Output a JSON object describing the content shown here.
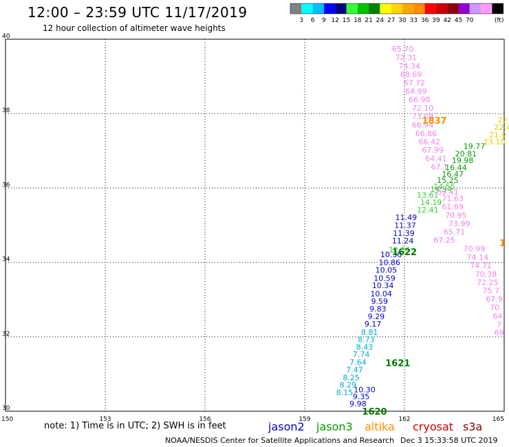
{
  "header": {
    "title": "12:00 – 23:59 UTC 11/17/2019",
    "subtitle": "12 hour collection of altimeter wave heights"
  },
  "colorbar": {
    "colors": [
      "#808080",
      "#00ffff",
      "#00bfff",
      "#0000ff",
      "#000080",
      "#33ff33",
      "#00c000",
      "#008000",
      "#ffff00",
      "#ffd700",
      "#ffa500",
      "#ff8c00",
      "#ff0000",
      "#cc0000",
      "#8b0000",
      "#9400d3",
      "#cc99ff",
      "#ff99ff",
      "#000000"
    ],
    "labels": [
      "3",
      "6",
      "9",
      "12",
      "15",
      "18",
      "21",
      "24",
      "27",
      "30",
      "33",
      "36",
      "39",
      "42",
      "45",
      "70",
      "(ft)"
    ]
  },
  "footer": {
    "note": "note: 1) Time is in UTC; 2) SWH is in feet",
    "credit": "NOAA/NESDIS Center for Satellite Applications and Research",
    "date": "Dec  3 15:33:58 UTC 2019"
  },
  "satellites": [
    {
      "name": "jason2",
      "color": "#0000cc"
    },
    {
      "name": "jason3",
      "color": "#009900"
    },
    {
      "name": "altika",
      "color": "#ff8c00"
    },
    {
      "name": "cryosat",
      "color": "#cc0000"
    },
    {
      "name": "s3a",
      "color": "#8b0000"
    }
  ],
  "chart_data": {
    "type": "scatter",
    "title": "12:00 – 23:59 UTC 11/17/2019",
    "subtitle": "12 hour collection of altimeter wave heights",
    "xlim": [
      150,
      165
    ],
    "ylim": [
      30,
      40
    ],
    "xticks": [
      "150",
      "153",
      "156",
      "159",
      "162",
      "165"
    ],
    "yticks": [
      "30",
      "32",
      "34",
      "36",
      "38",
      "40"
    ],
    "grid": true,
    "time_labels": [
      {
        "text": "1837",
        "lon": 162.9,
        "lat": 37.82,
        "color": "#ff8c00"
      },
      {
        "text": "1622",
        "lon": 162.0,
        "lat": 34.29,
        "color": "#007700"
      },
      {
        "text": "1621",
        "lon": 161.8,
        "lat": 31.3,
        "color": "#007700"
      },
      {
        "text": "1620",
        "lon": 161.1,
        "lat": 30.0,
        "color": "#007700"
      },
      {
        "text": "1",
        "lon": 164.95,
        "lat": 34.53,
        "color": "#ff8c00"
      }
    ],
    "series": [
      {
        "name": "jason2",
        "color": "#0000cc",
        "points": [
          {
            "lon": 160.6,
            "lat": 30.2,
            "v": "9.98"
          },
          {
            "lon": 160.7,
            "lat": 30.4,
            "v": "9.35"
          },
          {
            "lon": 160.8,
            "lat": 30.58,
            "v": "10.30"
          },
          {
            "lon": 161.95,
            "lat": 34.58,
            "v": "11.24"
          },
          {
            "lon": 161.98,
            "lat": 34.79,
            "v": "11.39"
          },
          {
            "lon": 162.02,
            "lat": 35.0,
            "v": "11.37"
          },
          {
            "lon": 162.05,
            "lat": 35.21,
            "v": "11.49"
          },
          {
            "lon": 161.6,
            "lat": 34.21,
            "v": "10.30"
          },
          {
            "lon": 161.55,
            "lat": 34.0,
            "v": "10.86"
          },
          {
            "lon": 161.45,
            "lat": 33.8,
            "v": "10.05"
          },
          {
            "lon": 161.4,
            "lat": 33.58,
            "v": "10.59"
          },
          {
            "lon": 161.35,
            "lat": 33.38,
            "v": "10.34"
          },
          {
            "lon": 161.3,
            "lat": 33.16,
            "v": "10.04"
          },
          {
            "lon": 161.25,
            "lat": 32.96,
            "v": "9.59"
          },
          {
            "lon": 161.2,
            "lat": 32.75,
            "v": "9.83"
          },
          {
            "lon": 161.15,
            "lat": 32.55,
            "v": "9.29"
          },
          {
            "lon": 161.05,
            "lat": 32.35,
            "v": "9.17"
          }
        ]
      },
      {
        "name": "jason3",
        "color": "#009900",
        "points": [
          {
            "lon": 164.1,
            "lat": 37.13,
            "v": "19.77"
          },
          {
            "lon": 163.85,
            "lat": 36.92,
            "v": "20.81"
          },
          {
            "lon": 163.75,
            "lat": 36.75,
            "v": "19.98"
          },
          {
            "lon": 163.55,
            "lat": 36.55,
            "v": "16.44"
          },
          {
            "lon": 163.45,
            "lat": 36.38,
            "v": "16.47"
          },
          {
            "lon": 163.3,
            "lat": 36.21,
            "v": "15.25"
          }
        ]
      },
      {
        "name": "jason3-light",
        "color": "#33cc33",
        "points": [
          {
            "lon": 162.7,
            "lat": 35.81,
            "v": "13.61"
          },
          {
            "lon": 162.8,
            "lat": 35.62,
            "v": "14.19"
          },
          {
            "lon": 162.7,
            "lat": 35.42,
            "v": "12.41"
          },
          {
            "lon": 161.85,
            "lat": 34.34,
            "v": "12.56"
          },
          {
            "lon": 163.1,
            "lat": 35.97,
            "v": "14.34"
          },
          {
            "lon": 163.2,
            "lat": 36.04,
            "v": "14.55"
          }
        ]
      },
      {
        "name": "cyan",
        "color": "#00aacc",
        "points": [
          {
            "lon": 160.95,
            "lat": 32.13,
            "v": "8.81"
          },
          {
            "lon": 160.85,
            "lat": 31.93,
            "v": "8.73"
          },
          {
            "lon": 160.8,
            "lat": 31.73,
            "v": "8.43"
          },
          {
            "lon": 160.7,
            "lat": 31.53,
            "v": "7.74"
          },
          {
            "lon": 160.6,
            "lat": 31.32,
            "v": "7.64"
          },
          {
            "lon": 160.5,
            "lat": 31.12,
            "v": "7.47"
          },
          {
            "lon": 160.4,
            "lat": 30.91,
            "v": "8.25"
          },
          {
            "lon": 160.3,
            "lat": 30.71,
            "v": "8.29"
          },
          {
            "lon": 160.2,
            "lat": 30.51,
            "v": "8.15"
          }
        ]
      },
      {
        "name": "altika-yellow",
        "color": "#e6c800",
        "points": [
          {
            "lon": 164.95,
            "lat": 37.83,
            "v": "22"
          },
          {
            "lon": 164.95,
            "lat": 37.63,
            "v": "22.4"
          },
          {
            "lon": 164.8,
            "lat": 37.43,
            "v": "21.9"
          },
          {
            "lon": 164.7,
            "lat": 37.25,
            "v": "23.10"
          }
        ]
      },
      {
        "name": "pink",
        "color": "#ee82ee",
        "points": [
          {
            "lon": 161.95,
            "lat": 39.74,
            "v": "65.70"
          },
          {
            "lon": 162.05,
            "lat": 39.51,
            "v": "72.31"
          },
          {
            "lon": 162.15,
            "lat": 39.28,
            "v": "74.34"
          },
          {
            "lon": 162.2,
            "lat": 39.06,
            "v": "68.69"
          },
          {
            "lon": 162.3,
            "lat": 38.83,
            "v": "67.72"
          },
          {
            "lon": 162.35,
            "lat": 38.6,
            "v": "64.99"
          },
          {
            "lon": 162.45,
            "lat": 38.38,
            "v": "66.98"
          },
          {
            "lon": 162.55,
            "lat": 38.15,
            "v": "72.10"
          },
          {
            "lon": 162.55,
            "lat": 37.93,
            "v": "73.08"
          },
          {
            "lon": 162.55,
            "lat": 37.7,
            "v": "66.94"
          },
          {
            "lon": 162.65,
            "lat": 37.47,
            "v": "66.86"
          },
          {
            "lon": 162.75,
            "lat": 37.25,
            "v": "66.42"
          },
          {
            "lon": 162.85,
            "lat": 37.02,
            "v": "67.99"
          },
          {
            "lon": 162.95,
            "lat": 36.79,
            "v": "64.41"
          },
          {
            "lon": 163.05,
            "lat": 36.57,
            "v": "67.1"
          },
          {
            "lon": 163.45,
            "lat": 35.72,
            "v": "71.63"
          },
          {
            "lon": 163.45,
            "lat": 35.5,
            "v": "61.69"
          },
          {
            "lon": 163.55,
            "lat": 35.27,
            "v": "70.95"
          },
          {
            "lon": 163.65,
            "lat": 35.05,
            "v": "73.99"
          },
          {
            "lon": 163.5,
            "lat": 34.82,
            "v": "65.71"
          },
          {
            "lon": 163.2,
            "lat": 34.6,
            "v": "67.25"
          },
          {
            "lon": 164.1,
            "lat": 34.37,
            "v": "70.99"
          },
          {
            "lon": 164.2,
            "lat": 34.14,
            "v": "74.14"
          },
          {
            "lon": 164.3,
            "lat": 33.92,
            "v": "74.71"
          },
          {
            "lon": 164.45,
            "lat": 33.69,
            "v": "70.38"
          },
          {
            "lon": 164.5,
            "lat": 33.47,
            "v": "72.25"
          },
          {
            "lon": 164.6,
            "lat": 33.24,
            "v": "75.7"
          },
          {
            "lon": 164.7,
            "lat": 33.01,
            "v": "67.9"
          },
          {
            "lon": 164.75,
            "lat": 32.79,
            "v": "70."
          },
          {
            "lon": 164.8,
            "lat": 32.56,
            "v": "64"
          },
          {
            "lon": 164.85,
            "lat": 32.34,
            "v": "7"
          },
          {
            "lon": 164.85,
            "lat": 32.12,
            "v": "69"
          },
          {
            "lon": 163.3,
            "lat": 35.9,
            "v": "69.41"
          }
        ]
      }
    ]
  }
}
